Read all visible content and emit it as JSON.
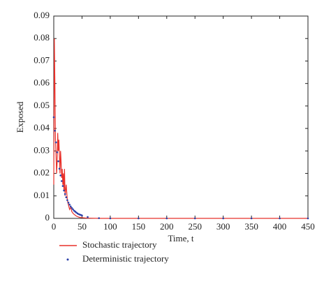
{
  "chart_data": {
    "type": "line",
    "xlabel": "Time, t",
    "ylabel": "Exposed",
    "xlim": [
      0,
      450
    ],
    "xticks": [
      0,
      50,
      100,
      150,
      200,
      250,
      300,
      350,
      400,
      450
    ],
    "ylim": [
      0,
      0.09
    ],
    "yticks": [
      0,
      0.01,
      0.02,
      0.03,
      0.04,
      0.05,
      0.06,
      0.07,
      0.08,
      0.09
    ],
    "legend": "bottom-left",
    "series": [
      {
        "name": "Stochastic trajectory",
        "color": "#e8302a",
        "style": "line",
        "x": [
          0,
          1,
          2,
          3,
          4,
          5,
          6,
          7,
          8,
          9,
          10,
          11,
          12,
          13,
          14,
          15,
          16,
          17,
          18,
          19,
          20,
          22,
          24,
          26,
          28,
          30,
          32,
          35,
          40,
          45,
          50,
          60,
          80,
          100,
          150,
          200,
          300,
          450
        ],
        "values": [
          0.015,
          0.08,
          0.06,
          0.035,
          0.028,
          0.02,
          0.025,
          0.038,
          0.03,
          0.035,
          0.028,
          0.02,
          0.03,
          0.025,
          0.018,
          0.022,
          0.015,
          0.02,
          0.012,
          0.022,
          0.01,
          0.015,
          0.008,
          0.006,
          0.004,
          0.005,
          0.003,
          0.002,
          0.001,
          0.0005,
          0.0003,
          0.0001,
          0,
          0,
          0,
          0,
          0,
          0
        ]
      },
      {
        "name": "Deterministic trajectory",
        "color": "#2a3fa8",
        "style": "dots",
        "x": [
          0,
          2,
          4,
          6,
          8,
          10,
          12,
          14,
          16,
          18,
          20,
          22,
          24,
          26,
          28,
          30,
          32,
          34,
          36,
          38,
          40,
          42,
          44,
          46,
          48,
          50,
          60,
          80,
          100,
          150,
          200,
          250,
          300,
          350,
          400,
          450
        ],
        "values": [
          0.045,
          0.039,
          0.0338,
          0.0294,
          0.0254,
          0.0221,
          0.0191,
          0.0166,
          0.0144,
          0.0124,
          0.0108,
          0.0094,
          0.0081,
          0.007,
          0.0061,
          0.0053,
          0.0046,
          0.004,
          0.0034,
          0.003,
          0.0026,
          0.0022,
          0.0019,
          0.0017,
          0.0015,
          0.0013,
          0.0006,
          0.0001,
          0,
          0,
          0,
          0,
          0,
          0,
          0,
          0
        ]
      }
    ]
  }
}
